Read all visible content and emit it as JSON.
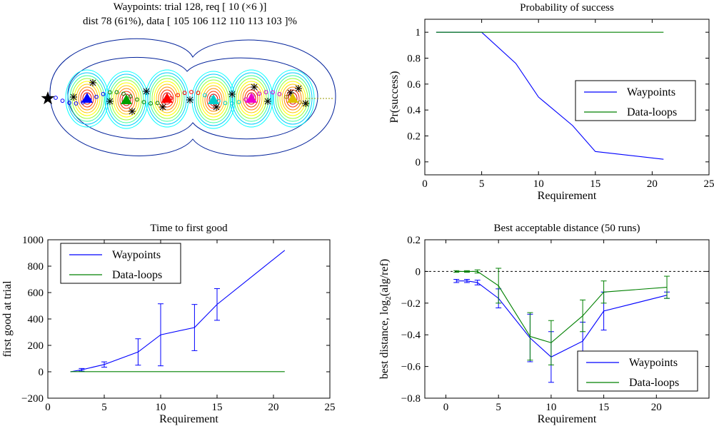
{
  "colors": {
    "waypoints": "#0000ff",
    "dataloops": "#008000",
    "axis": "#000000",
    "background": "#ffffff"
  },
  "chart_data": [
    {
      "id": "map",
      "type": "contour",
      "title_line1": "Waypoints: trial 128, req [ 10 (×6 )]",
      "title_line2": "dist 78 (61%), data [ 105 106 112 110 113 103 ]%",
      "markers": {
        "start": "black-star",
        "waypoints": [
          "blue-triangle",
          "green-triangle",
          "red-triangle",
          "cyan-triangle",
          "magenta-triangle",
          "yellow-triangle"
        ]
      }
    },
    {
      "id": "prob",
      "type": "line",
      "title": "Probability of success",
      "xlabel": "Requirement",
      "ylabel": "Pr(success)",
      "xlim": [
        0,
        25
      ],
      "ylim": [
        -0.1,
        1.1
      ],
      "xticks": [
        0,
        5,
        10,
        15,
        20,
        25
      ],
      "yticks": [
        0,
        0.2,
        0.4,
        0.6,
        0.8,
        1
      ],
      "legend_position": "right",
      "series": [
        {
          "name": "Waypoints",
          "color": "#0000ff",
          "x": [
            1,
            2,
            3,
            5,
            8,
            10,
            13,
            15,
            21
          ],
          "y": [
            1,
            1,
            1,
            1,
            0.76,
            0.5,
            0.28,
            0.08,
            0.02
          ]
        },
        {
          "name": "Data-loops",
          "color": "#008000",
          "x": [
            1,
            2,
            3,
            5,
            8,
            10,
            13,
            15,
            21
          ],
          "y": [
            1,
            1,
            1,
            1,
            1,
            1,
            1,
            1,
            1
          ]
        }
      ]
    },
    {
      "id": "time",
      "type": "line",
      "title": "Time to first good",
      "xlabel": "Requirement",
      "ylabel": "first good at trial",
      "xlim": [
        0,
        25
      ],
      "ylim": [
        -200,
        1000
      ],
      "xticks": [
        0,
        5,
        10,
        15,
        20,
        25
      ],
      "yticks": [
        -200,
        0,
        200,
        400,
        600,
        800,
        1000
      ],
      "legend_position": "top-left",
      "series": [
        {
          "name": "Waypoints",
          "color": "#0000ff",
          "x": [
            2,
            3,
            5,
            8,
            10,
            13,
            15,
            21
          ],
          "y": [
            0,
            15,
            55,
            150,
            280,
            335,
            510,
            920
          ],
          "err": [
            0,
            10,
            20,
            100,
            235,
            175,
            120,
            0
          ]
        },
        {
          "name": "Data-loops",
          "color": "#008000",
          "x": [
            2,
            3,
            5,
            8,
            10,
            13,
            15,
            21
          ],
          "y": [
            1,
            1,
            1,
            1,
            1,
            1,
            1,
            1
          ]
        }
      ]
    },
    {
      "id": "dist",
      "type": "line",
      "title": "Best acceptable distance (50 runs)",
      "xlabel": "Requirement",
      "ylabel": "best distance, log",
      "ylabel_sub": "2",
      "ylabel_tail": "(alg/ref)",
      "xlim": [
        -2,
        25
      ],
      "ylim": [
        -0.8,
        0.2
      ],
      "xticks": [
        0,
        5,
        10,
        15,
        20
      ],
      "yticks": [
        -0.8,
        -0.6,
        -0.4,
        -0.2,
        0,
        0.2
      ],
      "reference_line": 0,
      "legend_position": "bottom-right",
      "series": [
        {
          "name": "Waypoints",
          "color": "#0000ff",
          "x": [
            1,
            2,
            3,
            5,
            8,
            10,
            13,
            15,
            21
          ],
          "y": [
            -0.06,
            -0.06,
            -0.07,
            -0.17,
            -0.42,
            -0.54,
            -0.44,
            -0.25,
            -0.15
          ],
          "err": [
            0.01,
            0.01,
            0.015,
            0.06,
            0.15,
            0.16,
            0.12,
            0.12,
            0.02
          ]
        },
        {
          "name": "Data-loops",
          "color": "#008000",
          "x": [
            1,
            2,
            3,
            5,
            8,
            10,
            13,
            15,
            21
          ],
          "y": [
            0,
            0,
            0,
            -0.09,
            -0.41,
            -0.45,
            -0.28,
            -0.13,
            -0.1
          ],
          "err": [
            0.005,
            0.005,
            0.01,
            0.11,
            0.15,
            0.14,
            0.1,
            0.07,
            0.07
          ]
        }
      ]
    }
  ]
}
